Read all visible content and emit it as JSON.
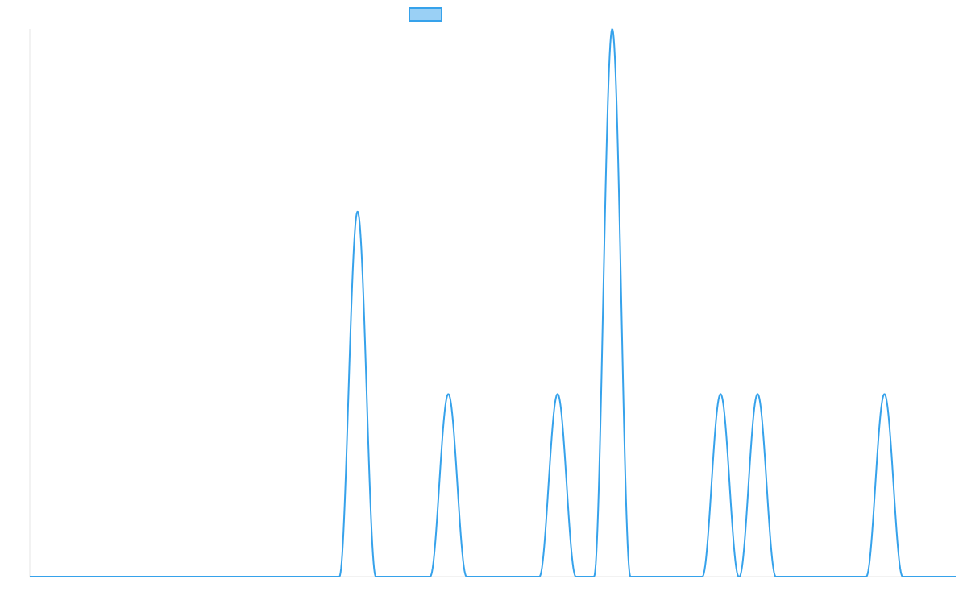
{
  "chart_data": {
    "type": "area",
    "title": "",
    "xlabel": "",
    "ylabel": "",
    "grid": false,
    "legend_placement": "top",
    "series": [
      {
        "line_color": "#36a2eb",
        "fill_color": "#9ad0f5",
        "peaks": [
          {
            "x": 0.354,
            "y": 2
          },
          {
            "x": 0.452,
            "y": 1
          },
          {
            "x": 0.57,
            "y": 1
          },
          {
            "x": 0.629,
            "y": 3
          },
          {
            "x": 0.746,
            "y": 1
          },
          {
            "x": 0.786,
            "y": 1
          },
          {
            "x": 0.923,
            "y": 1
          }
        ]
      }
    ],
    "xlim": [
      0,
      1
    ],
    "ylim": [
      0,
      3
    ]
  }
}
